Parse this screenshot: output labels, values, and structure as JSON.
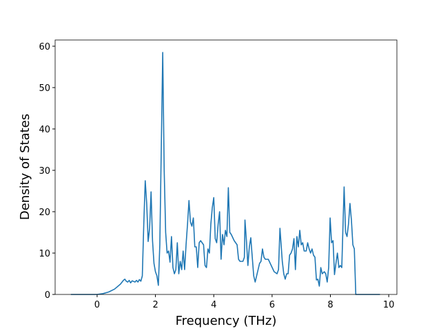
{
  "chart_data": {
    "type": "line",
    "xlabel": "Frequency (THz)",
    "ylabel": "Density of States",
    "xlim": [
      -1.44,
      10.28
    ],
    "ylim": [
      0,
      61.5
    ],
    "xticks": [
      0,
      2,
      4,
      6,
      8,
      10
    ],
    "yticks": [
      0,
      10,
      20,
      30,
      40,
      50,
      60
    ],
    "x": [
      -0.9,
      -0.5,
      0,
      0.2,
      0.4,
      0.6,
      0.8,
      0.9,
      0.95,
      1.0,
      1.05,
      1.1,
      1.15,
      1.2,
      1.3,
      1.35,
      1.4,
      1.45,
      1.5,
      1.55,
      1.6,
      1.65,
      1.7,
      1.75,
      1.8,
      1.85,
      1.9,
      1.95,
      2.0,
      2.05,
      2.1,
      2.15,
      2.25,
      2.3,
      2.35,
      2.4,
      2.45,
      2.5,
      2.55,
      2.6,
      2.65,
      2.7,
      2.75,
      2.8,
      2.85,
      2.9,
      2.95,
      3.0,
      3.05,
      3.1,
      3.15,
      3.2,
      3.25,
      3.3,
      3.35,
      3.4,
      3.45,
      3.5,
      3.55,
      3.65,
      3.7,
      3.75,
      3.8,
      3.85,
      3.9,
      3.95,
      4.0,
      4.05,
      4.1,
      4.15,
      4.2,
      4.25,
      4.3,
      4.35,
      4.4,
      4.45,
      4.5,
      4.55,
      4.6,
      4.7,
      4.8,
      4.85,
      4.9,
      5.0,
      5.05,
      5.07,
      5.12,
      5.17,
      5.22,
      5.27,
      5.32,
      5.37,
      5.42,
      5.47,
      5.57,
      5.62,
      5.67,
      5.72,
      5.77,
      5.87,
      5.97,
      6.07,
      6.17,
      6.22,
      6.27,
      6.35,
      6.4,
      6.45,
      6.5,
      6.55,
      6.6,
      6.65,
      6.7,
      6.75,
      6.8,
      6.85,
      6.9,
      6.95,
      7.0,
      7.05,
      7.1,
      7.17,
      7.22,
      7.27,
      7.32,
      7.37,
      7.42,
      7.47,
      7.52,
      7.57,
      7.62,
      7.67,
      7.72,
      7.79,
      7.84,
      7.89,
      7.94,
      7.99,
      8.04,
      8.09,
      8.14,
      8.19,
      8.24,
      8.29,
      8.34,
      8.39,
      8.47,
      8.52,
      8.57,
      8.62,
      8.67,
      8.72,
      8.77,
      8.82,
      8.87,
      8.97,
      9.7
    ],
    "series": [
      {
        "color": "#1f77b4",
        "values": [
          0,
          0,
          0,
          0.2,
          0.6,
          1.3,
          2.5,
          3.4,
          3.7,
          3.2,
          3.0,
          3.4,
          2.8,
          3.3,
          3.0,
          3.4,
          3.0,
          3.6,
          3.2,
          4.5,
          17,
          27.5,
          22,
          12.8,
          16,
          24.8,
          13,
          7.5,
          5.5,
          4.5,
          2.2,
          12,
          58.5,
          30,
          15,
          10,
          10.5,
          7.8,
          14,
          6.5,
          5,
          6,
          12.5,
          5,
          8,
          6,
          10.5,
          6,
          12,
          17,
          22.7,
          17.5,
          16.5,
          18.5,
          11.5,
          11.5,
          6.5,
          12.5,
          13,
          12,
          7,
          6.5,
          11,
          10,
          17,
          21,
          23.4,
          13.5,
          12.5,
          17,
          20,
          8.5,
          14.5,
          12,
          15.5,
          14,
          25.8,
          15,
          14.5,
          13,
          12,
          8.5,
          8,
          8,
          9,
          18,
          13,
          7,
          11.5,
          13.7,
          9,
          4.5,
          3,
          4.5,
          7.5,
          8,
          11,
          9,
          8.5,
          8.5,
          7,
          5.5,
          5,
          6,
          16,
          8,
          5,
          3.7,
          5,
          5,
          9.5,
          10,
          11,
          13.5,
          6,
          14,
          11.5,
          15.5,
          12,
          12.5,
          10.5,
          10.5,
          12.5,
          11,
          10,
          11,
          9.5,
          9,
          3.5,
          3.7,
          2,
          6.5,
          5,
          5.5,
          5,
          3,
          6.5,
          18.5,
          12.5,
          13,
          4.8,
          7.5,
          10,
          6.5,
          7,
          6.5,
          26,
          15,
          14,
          17,
          22,
          18,
          12,
          11,
          0,
          0,
          0
        ]
      }
    ]
  }
}
